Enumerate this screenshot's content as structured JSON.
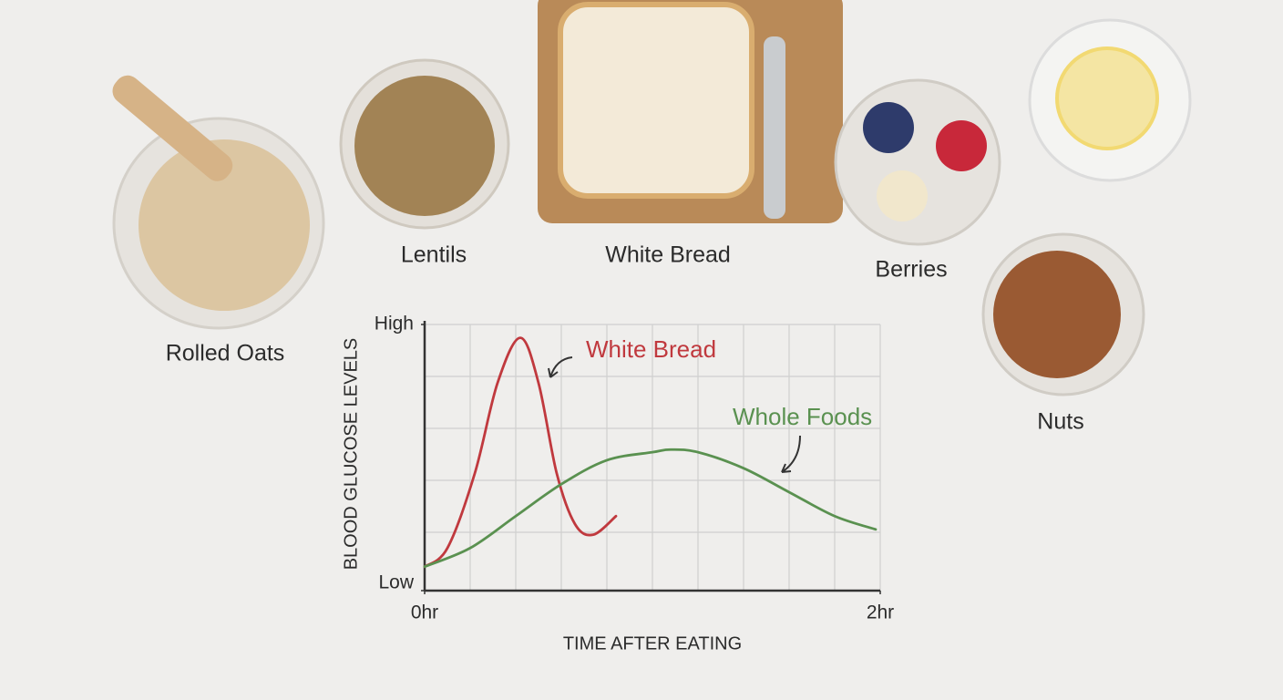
{
  "food_labels": [
    "Rolled Oats",
    "Lentils",
    "White Bread",
    "Berries",
    "Nuts"
  ],
  "chart_data": {
    "type": "line",
    "x_label": "TIME AFTER EATING",
    "y_label": "BLOOD GLUCOSE LEVELS",
    "xlim": [
      0,
      2
    ],
    "xticks": [
      {
        "value": 0,
        "label": "0hr"
      },
      {
        "value": 2,
        "label": "2hr"
      }
    ],
    "ylim": [
      0,
      1
    ],
    "yticks": [
      {
        "value": 0,
        "label": "Low"
      },
      {
        "value": 1,
        "label": "High"
      }
    ],
    "grid": true,
    "series": [
      {
        "name": "White Bread",
        "color": "#c0393e",
        "x": [
          0,
          0.1,
          0.22,
          0.32,
          0.42,
          0.5,
          0.58,
          0.66,
          0.74,
          0.84
        ],
        "values": [
          0.09,
          0.16,
          0.44,
          0.78,
          0.95,
          0.78,
          0.44,
          0.25,
          0.21,
          0.28
        ]
      },
      {
        "name": "Whole Foods",
        "color": "#5a9150",
        "x": [
          0,
          0.2,
          0.4,
          0.6,
          0.8,
          1.0,
          1.08,
          1.2,
          1.4,
          1.6,
          1.8,
          1.98
        ],
        "values": [
          0.09,
          0.16,
          0.28,
          0.4,
          0.49,
          0.52,
          0.53,
          0.52,
          0.46,
          0.37,
          0.28,
          0.23
        ]
      }
    ]
  }
}
